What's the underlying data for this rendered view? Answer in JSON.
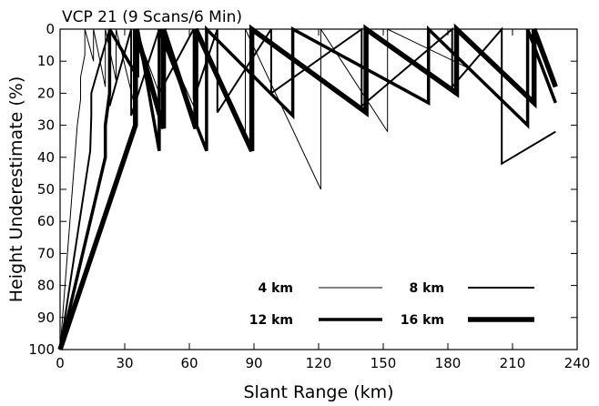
{
  "chart_data": {
    "type": "line",
    "title": "VCP 21 (9 Scans/6 Min)",
    "xlabel": "Slant Range (km)",
    "ylabel": "Height Underestimate (%)",
    "xlim": [
      0,
      240
    ],
    "ylim": [
      100,
      0
    ],
    "y_inverted": true,
    "grid": false,
    "legend_placement": "bottom-right",
    "xticks": [
      0,
      30,
      60,
      90,
      120,
      150,
      180,
      210,
      240
    ],
    "yticks": [
      0,
      10,
      20,
      30,
      40,
      50,
      60,
      70,
      80,
      90,
      100
    ],
    "series": [
      {
        "name": "4 km",
        "x": [
          0,
          8,
          9.5,
          9.5,
          11.5,
          11.5,
          15.5,
          15.5,
          21,
          21,
          26,
          26,
          35,
          35,
          46,
          46,
          62,
          62,
          86,
          86,
          121,
          121,
          152,
          152,
          189
        ],
        "y": [
          100,
          30,
          22,
          15,
          8,
          0,
          10,
          0,
          18,
          0,
          16,
          0,
          25,
          0,
          20,
          0,
          24,
          0,
          35,
          0,
          50,
          0,
          32,
          0,
          12
        ]
      },
      {
        "name": "8 km",
        "x": [
          0,
          14,
          14.5,
          14.5,
          23,
          23,
          33,
          33,
          46,
          46,
          62,
          62,
          73,
          73,
          98,
          98,
          140,
          140,
          182,
          182,
          205,
          205,
          230
        ],
        "y": [
          100,
          38,
          27,
          20,
          0,
          24,
          0,
          27,
          0,
          20,
          0,
          22,
          0,
          26,
          0,
          20,
          0,
          24,
          0,
          18,
          0,
          42,
          32
        ]
      },
      {
        "name": "12 km",
        "x": [
          0,
          21,
          21,
          23,
          23,
          36,
          36,
          46,
          46,
          68,
          68,
          108,
          108,
          171,
          171,
          217,
          217,
          230
        ],
        "y": [
          100,
          40,
          30,
          20,
          0,
          15,
          0,
          38,
          0,
          38,
          0,
          27,
          0,
          23,
          0,
          30,
          0,
          23
        ]
      },
      {
        "name": "16 km",
        "x": [
          0,
          35,
          35,
          48,
          48,
          63,
          63,
          89,
          89,
          142,
          142,
          184,
          184,
          220,
          220,
          230
        ],
        "y": [
          100,
          30,
          0,
          31,
          0,
          31,
          0,
          38,
          0,
          26,
          0,
          20,
          0,
          23,
          0,
          18
        ]
      }
    ]
  },
  "style": {
    "widths": {
      "4 km": 1,
      "8 km": 2,
      "12 km": 3.5,
      "16 km": 5.5
    },
    "color": "#000000",
    "background": "#ffffff"
  }
}
